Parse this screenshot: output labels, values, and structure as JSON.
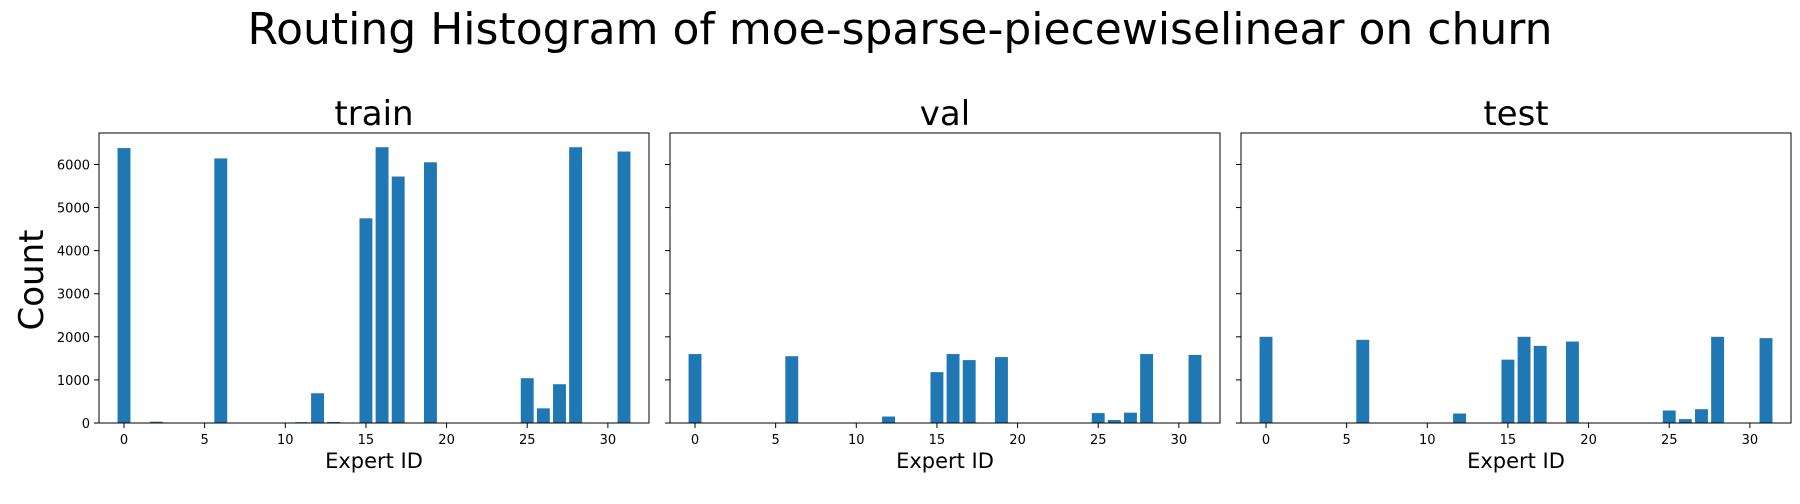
{
  "figure": {
    "title": "Routing Histogram of moe-sparse-piecewiselinear on churn",
    "ylabel": "Count"
  },
  "chart_data": [
    {
      "type": "bar",
      "title": "train",
      "xlabel": "Expert ID",
      "ylabel": "Count",
      "xlim": [
        -1.55,
        32.55
      ],
      "ylim": [
        0,
        6730
      ],
      "xticks": [
        0,
        5,
        10,
        15,
        20,
        25,
        30
      ],
      "yticks": [
        0,
        1000,
        2000,
        3000,
        4000,
        5000,
        6000
      ],
      "x": [
        0,
        1,
        2,
        3,
        4,
        5,
        6,
        7,
        8,
        9,
        10,
        11,
        12,
        13,
        14,
        15,
        16,
        17,
        18,
        19,
        20,
        21,
        22,
        23,
        24,
        25,
        26,
        27,
        28,
        29,
        30,
        31
      ],
      "values": [
        6380,
        0,
        30,
        0,
        0,
        0,
        6140,
        0,
        0,
        0,
        0,
        20,
        690,
        25,
        0,
        4750,
        6400,
        5720,
        0,
        6050,
        0,
        0,
        0,
        0,
        0,
        1040,
        340,
        900,
        6400,
        0,
        0,
        6300
      ],
      "color": "#1f77b4",
      "grid": false
    },
    {
      "type": "bar",
      "title": "val",
      "xlabel": "Expert ID",
      "ylabel": "Count",
      "xlim": [
        -1.55,
        32.55
      ],
      "ylim": [
        0,
        6730
      ],
      "xticks": [
        0,
        5,
        10,
        15,
        20,
        25,
        30
      ],
      "yticks": [
        0,
        1000,
        2000,
        3000,
        4000,
        5000,
        6000
      ],
      "x": [
        0,
        1,
        2,
        3,
        4,
        5,
        6,
        7,
        8,
        9,
        10,
        11,
        12,
        13,
        14,
        15,
        16,
        17,
        18,
        19,
        20,
        21,
        22,
        23,
        24,
        25,
        26,
        27,
        28,
        29,
        30,
        31
      ],
      "values": [
        1600,
        0,
        0,
        0,
        0,
        0,
        1550,
        0,
        0,
        0,
        0,
        0,
        150,
        0,
        0,
        1180,
        1600,
        1460,
        0,
        1530,
        0,
        0,
        0,
        0,
        0,
        230,
        70,
        240,
        1600,
        0,
        0,
        1580
      ],
      "color": "#1f77b4",
      "grid": false
    },
    {
      "type": "bar",
      "title": "test",
      "xlabel": "Expert ID",
      "ylabel": "Count",
      "xlim": [
        -1.55,
        32.55
      ],
      "ylim": [
        0,
        6730
      ],
      "xticks": [
        0,
        5,
        10,
        15,
        20,
        25,
        30
      ],
      "yticks": [
        0,
        1000,
        2000,
        3000,
        4000,
        5000,
        6000
      ],
      "x": [
        0,
        1,
        2,
        3,
        4,
        5,
        6,
        7,
        8,
        9,
        10,
        11,
        12,
        13,
        14,
        15,
        16,
        17,
        18,
        19,
        20,
        21,
        22,
        23,
        24,
        25,
        26,
        27,
        28,
        29,
        30,
        31
      ],
      "values": [
        2000,
        0,
        0,
        0,
        0,
        0,
        1930,
        0,
        0,
        0,
        0,
        0,
        220,
        0,
        0,
        1470,
        2000,
        1790,
        0,
        1890,
        0,
        0,
        0,
        0,
        0,
        290,
        90,
        320,
        2000,
        0,
        0,
        1970
      ],
      "color": "#1f77b4",
      "grid": false
    }
  ]
}
